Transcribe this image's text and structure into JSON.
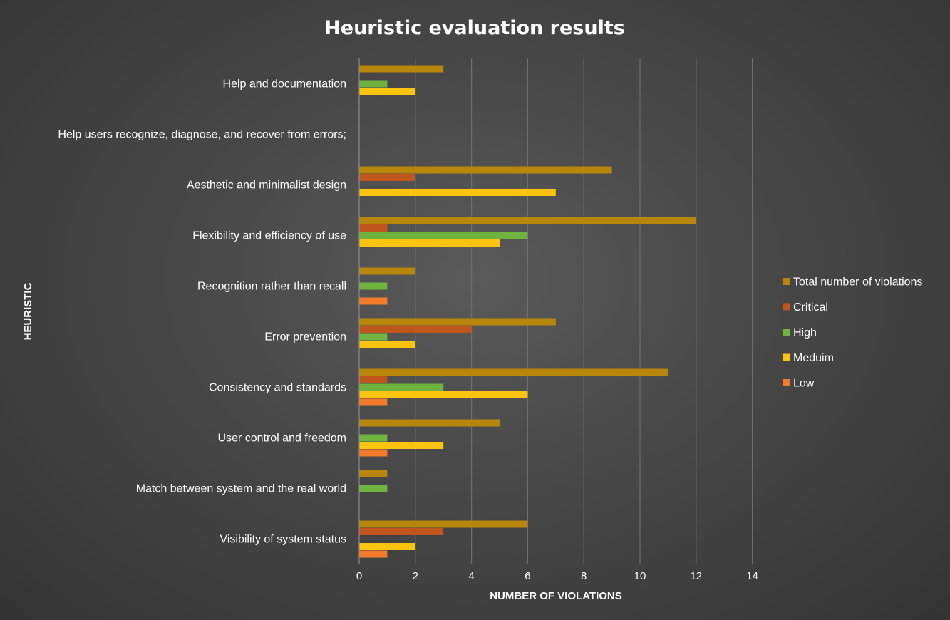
{
  "chart_data": {
    "type": "bar",
    "orientation": "horizontal",
    "title": "Heuristic evaluation results",
    "xlabel": "NUMBER OF VIOLATIONS",
    "ylabel": "HEURISTIC",
    "xlim": [
      0,
      14
    ],
    "xticks": [
      0,
      2,
      4,
      6,
      8,
      10,
      12,
      14
    ],
    "grid": true,
    "legend_position": "right",
    "categories": [
      "Visibility of system status",
      "Match between system and the real world",
      "User control and freedom",
      "Consistency and standards",
      "Error prevention",
      "Recognition rather than recall",
      "Flexibility and efficiency of use",
      "Aesthetic and minimalist design",
      "Help users recognize, diagnose, and recover from errors;",
      "Help and documentation"
    ],
    "series": [
      {
        "name": "Low",
        "color": "#f47b2a",
        "values": [
          1,
          0,
          1,
          1,
          0,
          1,
          0,
          0,
          0,
          0
        ]
      },
      {
        "name": "Meduim",
        "color": "#fcc40e",
        "values": [
          2,
          0,
          3,
          6,
          2,
          0,
          5,
          7,
          0,
          2
        ]
      },
      {
        "name": "High",
        "color": "#6fb43f",
        "values": [
          0,
          1,
          1,
          3,
          1,
          1,
          6,
          0,
          0,
          1
        ]
      },
      {
        "name": "Critical",
        "color": "#c0561c",
        "values": [
          3,
          0,
          0,
          1,
          4,
          0,
          1,
          2,
          0,
          0
        ]
      },
      {
        "name": "Total number of violations",
        "color": "#b8860b",
        "values": [
          6,
          1,
          5,
          11,
          7,
          2,
          12,
          9,
          0,
          3
        ]
      }
    ]
  }
}
